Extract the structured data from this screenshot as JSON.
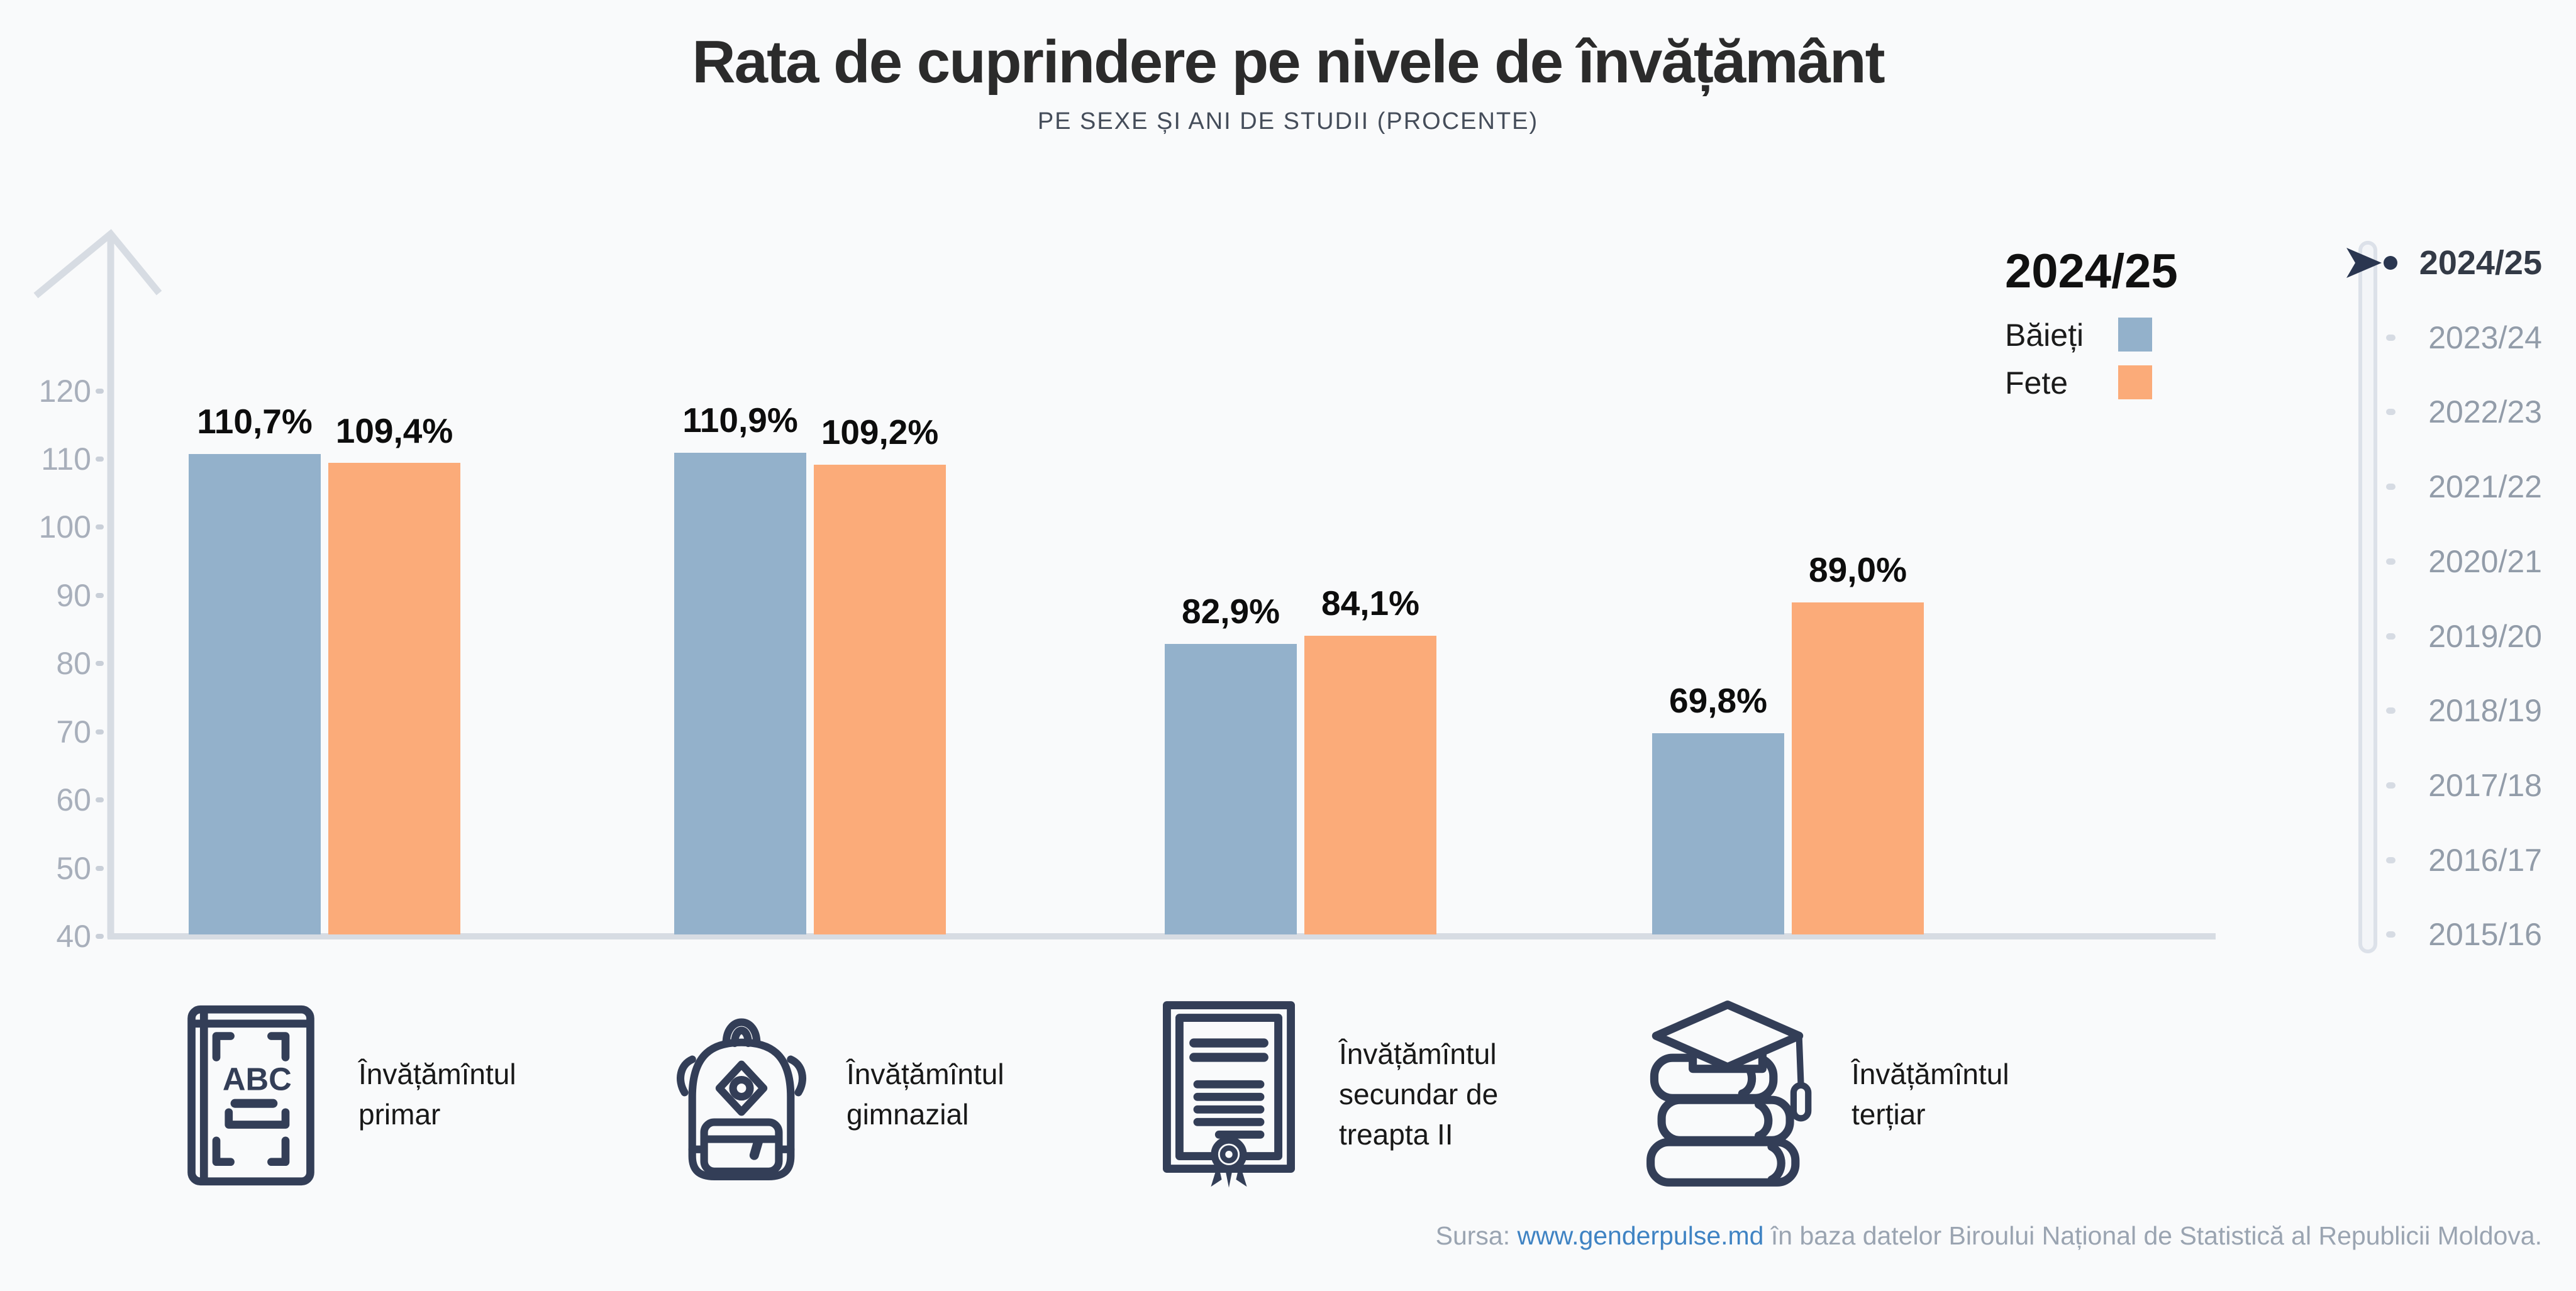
{
  "header": {
    "title": "Rata de cuprindere pe nivele de învățământ",
    "subtitle": "PE SEXE ȘI ANI DE STUDII (PROCENTE)"
  },
  "legend": {
    "year_label": "2024/25",
    "boys_label": "Băieți",
    "girls_label": "Fete"
  },
  "timeline": {
    "selected": "2024/25",
    "years": [
      "2024/25",
      "2023/24",
      "2022/23",
      "2021/22",
      "2020/21",
      "2019/20",
      "2018/19",
      "2017/18",
      "2016/17",
      "2015/16"
    ]
  },
  "chart_data": {
    "type": "bar",
    "title": "Rata de cuprindere pe nivele de învățământ",
    "subtitle": "PE SEXE ȘI ANI DE STUDII (PROCENTE)",
    "categories": [
      "Învățămîntul primar",
      "Învățămîntul gimnazial",
      "Învățămîntul secundar de treapta II",
      "Învățămîntul terțiar"
    ],
    "series": [
      {
        "name": "Băieți",
        "color": "#93b1cb",
        "values": [
          110.7,
          110.9,
          82.9,
          69.8
        ]
      },
      {
        "name": "Fete",
        "color": "#fbab79",
        "values": [
          109.4,
          109.2,
          84.1,
          89.0
        ]
      }
    ],
    "value_labels": [
      [
        "110,7%",
        "109,4%"
      ],
      [
        "110,9%",
        "109,2%"
      ],
      [
        "82,9%",
        "84,1%"
      ],
      [
        "69,8%",
        "89,0%"
      ]
    ],
    "y_ticks": [
      120,
      110,
      100,
      90,
      80,
      70,
      60,
      50,
      40
    ],
    "ylim": [
      40,
      130
    ],
    "unit": "%",
    "grid": false,
    "legend_position": "top-right"
  },
  "category_blocks": [
    {
      "icon": "abc-book-icon",
      "label": "Învățămîntul\nprimar"
    },
    {
      "icon": "backpack-icon",
      "label": "Învățămîntul\ngimnazial"
    },
    {
      "icon": "diploma-icon",
      "label": "Învățămîntul\nsecundar de\ntreapta II"
    },
    {
      "icon": "books-cap-icon",
      "label": "Învățămîntul\nterțiar"
    }
  ],
  "source": {
    "prefix": "Sursa: ",
    "link": "www.genderpulse.md",
    "suffix": " în baza datelor Biroului Național de Statistică al Republicii Moldova."
  },
  "colors": {
    "boys": "#93b1cb",
    "girls": "#fbab79",
    "accent_dark": "#2a3650",
    "axis": "#d7dce3",
    "link": "#3f83c3"
  }
}
